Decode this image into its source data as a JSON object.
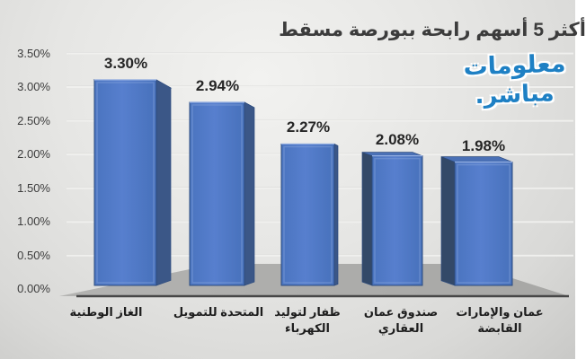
{
  "logo": {
    "line1": "معلومات",
    "line2": "مباشر."
  },
  "chart_data": {
    "type": "bar",
    "style": "3d-column",
    "title": "أكثر 5 أسهم رابحة ببورصة مسقط",
    "categories": [
      "الغاز الوطنية",
      "المتحدة للتمويل",
      "ظفار لتوليد الكهرباء",
      "صندوق عمان العقاري",
      "عمان والإمارات القابضة"
    ],
    "categories_wrapped": [
      [
        "الغاز الوطنية"
      ],
      [
        "المتحدة للتمويل"
      ],
      [
        "ظفار لتوليد",
        "الكهرباء"
      ],
      [
        "صندوق عمان",
        "العقاري"
      ],
      [
        "عمان والإمارات",
        "القابضة"
      ]
    ],
    "values": [
      3.3,
      2.94,
      2.27,
      2.08,
      1.98
    ],
    "value_labels": [
      "3.30%",
      "2.94%",
      "2.27%",
      "2.08%",
      "1.98%"
    ],
    "y_ticks": [
      "3.50%",
      "3.00%",
      "2.50%",
      "2.00%",
      "1.50%",
      "1.00%",
      "0.50%",
      "0.00%"
    ],
    "ylim": [
      0,
      3.5
    ],
    "xlabel": "",
    "ylabel": "",
    "legend": false,
    "grid": true,
    "colors": {
      "bar_front_light": "#577fce",
      "bar_front": "#4a74bf",
      "bar_front_dark": "#4771bb",
      "bar_border": "#2c4b7e",
      "bar_bevel": "#7f9fda",
      "bar_side_right": "#3b5787",
      "bar_side_left": "#334968",
      "bar_top": "#4a70b5",
      "bar_top_edge": "#93aee2",
      "floor": "#a7a7a5",
      "floor_light": "#b3b3b1",
      "baseline": "#474747",
      "gridline": "#f0f0ee",
      "gridline_shade": "#d5d5d3",
      "title_text": "#3c3c3c",
      "label_text": "#262626",
      "logo_blue": "#1e80c4"
    }
  }
}
